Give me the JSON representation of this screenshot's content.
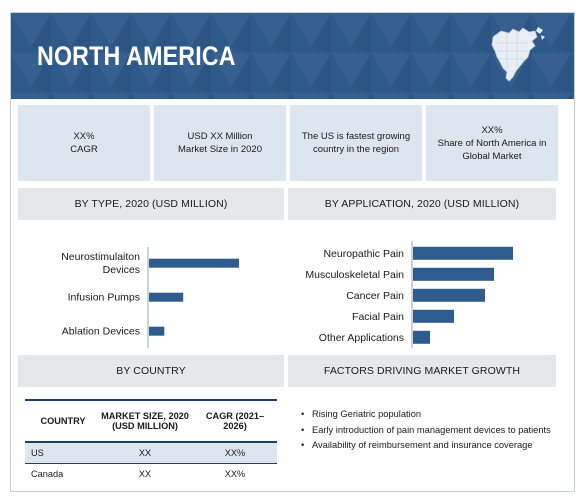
{
  "header": {
    "title": "NORTH AMERICA",
    "icon": "north-america-map-icon",
    "color": "#2e5a8a"
  },
  "stats": [
    {
      "lines": [
        "XX%",
        "CAGR"
      ]
    },
    {
      "lines": [
        "USD XX Million",
        "Market Size in 2020"
      ]
    },
    {
      "lines": [
        "The US is fastest growing",
        "country in the region"
      ]
    },
    {
      "lines": [
        "XX%",
        "Share of North America in",
        "Global Market"
      ]
    }
  ],
  "sections": {
    "by_type": "BY TYPE, 2020 (USD MILLION)",
    "by_application": "BY APPLICATION, 2020 (USD MILLION)",
    "by_country": "BY COUNTRY",
    "factors": "FACTORS DRIVING MARKET GROWTH"
  },
  "chart_data": [
    {
      "type": "bar",
      "orientation": "horizontal",
      "categories": [
        "Neurostimulaiton Devices",
        "Infusion Pumps",
        "Ablation Devices"
      ],
      "values": [
        10,
        3.8,
        1.7
      ],
      "bar_color": "#2e5c8c",
      "axis_values_shown": false
    },
    {
      "type": "bar",
      "orientation": "horizontal",
      "categories": [
        "Neuropathic Pain",
        "Musculoskeletal Pain",
        "Cancer Pain",
        "Facial Pain",
        "Other Applications"
      ],
      "values": [
        10,
        8.1,
        7.2,
        4.1,
        1.7
      ],
      "bar_color": "#2e5c8c",
      "axis_values_shown": false
    }
  ],
  "country_table": {
    "headers": [
      "COUNTRY",
      "MARKET SIZE, 2020 (USD MILLION)",
      "CAGR (2021–2026)"
    ],
    "rows": [
      [
        "US",
        "XX",
        "XX%"
      ],
      [
        "Canada",
        "XX",
        "XX%"
      ]
    ]
  },
  "factors": [
    "Rising Geriatric population",
    "Early introduction of pain management devices to patients",
    "Availability of reimbursement and insurance coverage"
  ]
}
